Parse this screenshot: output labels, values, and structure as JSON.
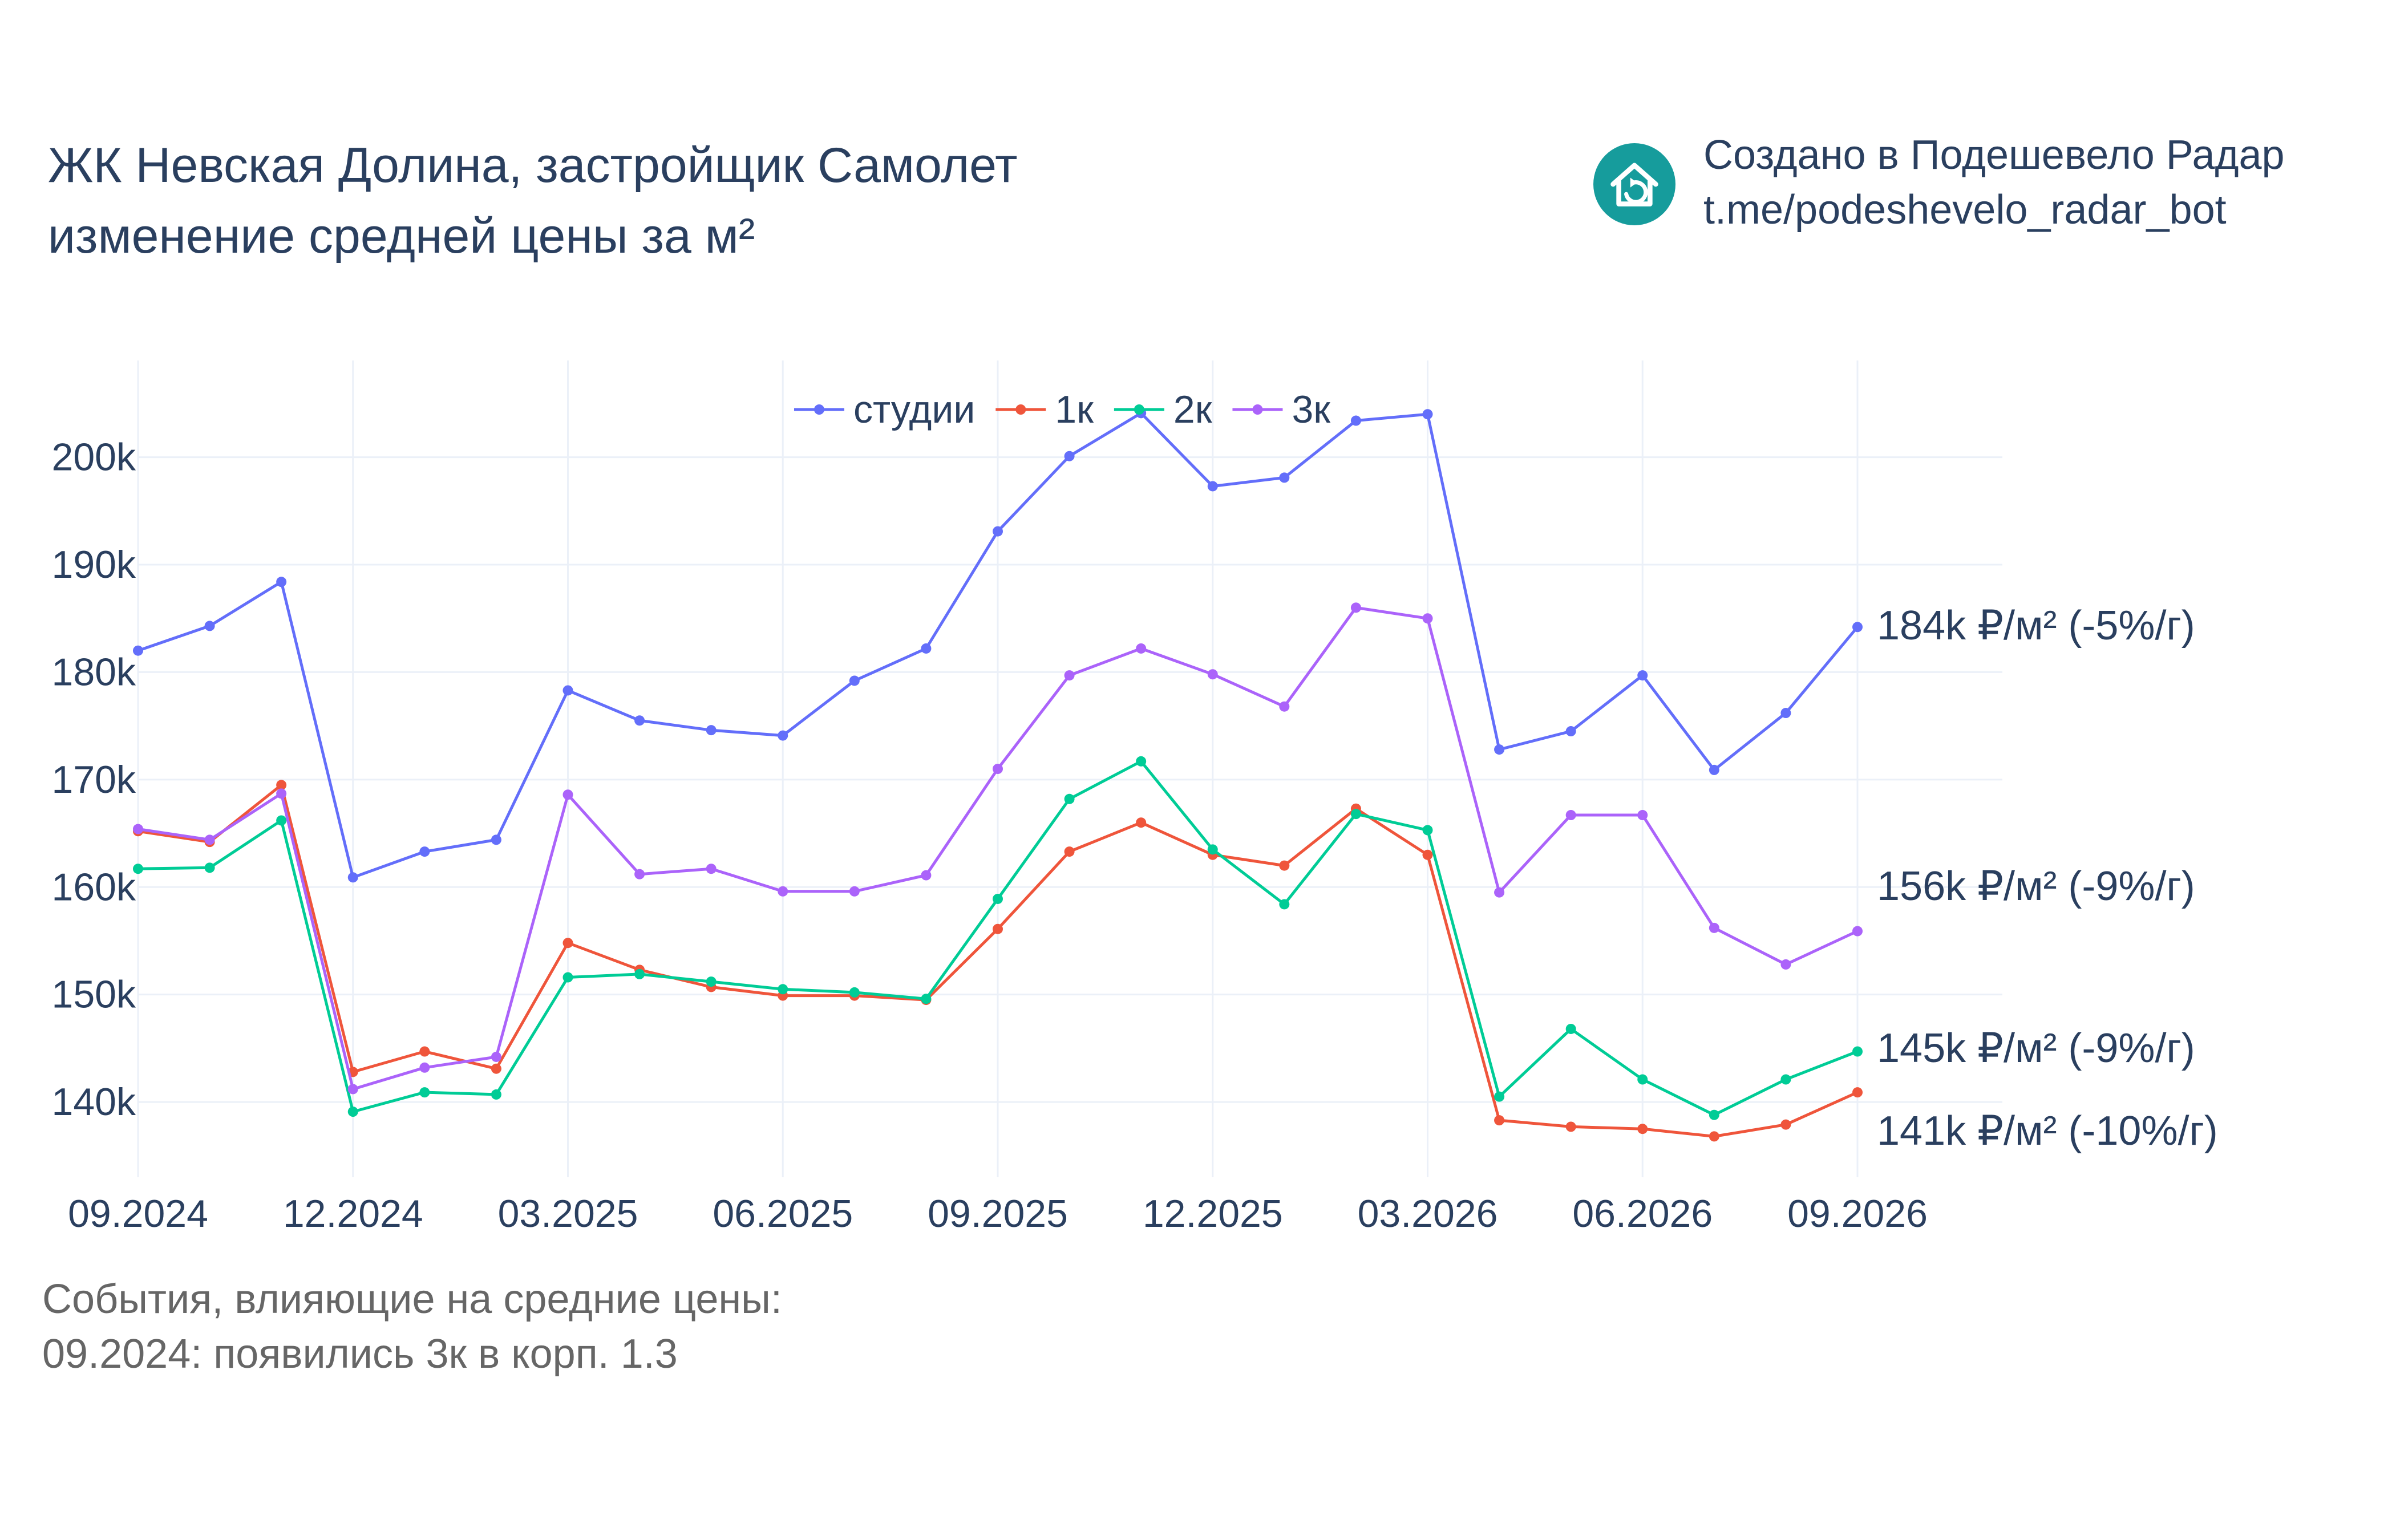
{
  "header": {
    "title_line1": "ЖК Невская Долина, застройщик Самолет",
    "title_line2": "изменение средней цены за м²"
  },
  "credit": {
    "line1": "Создано в Подешевело Радар",
    "line2": "t.me/podeshevelo_radar_bot",
    "logo_icon": "house-logo-icon",
    "logo_color": "#169c9c"
  },
  "chart_data": {
    "type": "line",
    "title": "ЖК Невская Долина, застройщик Самолет изменение средней цены за м²",
    "xlabel": "",
    "ylabel": "",
    "grid": true,
    "legend_position": "top",
    "x": [
      "2024-09",
      "2024-10",
      "2024-11",
      "2024-12",
      "2025-01",
      "2025-02",
      "2025-03",
      "2025-04",
      "2025-05",
      "2025-06",
      "2025-07",
      "2025-08",
      "2025-09",
      "2025-10",
      "2025-11",
      "2025-12",
      "2026-01",
      "2026-02",
      "2026-03",
      "2026-04",
      "2026-05",
      "2026-06",
      "2026-07",
      "2026-08",
      "2026-09"
    ],
    "x_ticks": [
      {
        "x": "2024-09",
        "label": "09.2024"
      },
      {
        "x": "2024-12",
        "label": "12.2024"
      },
      {
        "x": "2025-03",
        "label": "03.2025"
      },
      {
        "x": "2025-06",
        "label": "06.2025"
      },
      {
        "x": "2025-09",
        "label": "09.2025"
      },
      {
        "x": "2025-12",
        "label": "12.2025"
      },
      {
        "x": "2026-03",
        "label": "03.2026"
      },
      {
        "x": "2026-06",
        "label": "06.2026"
      },
      {
        "x": "2026-09",
        "label": "09.2026"
      }
    ],
    "y_ticks": [
      {
        "value": 140000,
        "label": "140k"
      },
      {
        "value": 150000,
        "label": "150k"
      },
      {
        "value": 160000,
        "label": "160k"
      },
      {
        "value": 170000,
        "label": "170k"
      },
      {
        "value": 180000,
        "label": "180k"
      },
      {
        "value": 190000,
        "label": "190k"
      },
      {
        "value": 200000,
        "label": "200k"
      }
    ],
    "ylim": [
      133000,
      209000
    ],
    "series": [
      {
        "name": "студии",
        "color": "#636efa",
        "values": [
          182000,
          184300,
          188400,
          160900,
          163300,
          164400,
          178300,
          175500,
          174600,
          174100,
          179200,
          182200,
          193100,
          200100,
          204100,
          197300,
          198100,
          203400,
          204000,
          172800,
          174500,
          179700,
          170900,
          176200,
          184200
        ],
        "end_label": "184k ₽/м² (-5%/г)"
      },
      {
        "name": "1к",
        "color": "#ef553b",
        "values": [
          165200,
          164200,
          169500,
          142800,
          144700,
          143100,
          154800,
          152300,
          150700,
          149900,
          149900,
          149500,
          156100,
          163300,
          166000,
          163000,
          162000,
          167300,
          163000,
          138300,
          137700,
          137500,
          136800,
          137900,
          140900
        ],
        "end_label": "141k ₽/м² (-10%/г)"
      },
      {
        "name": "2к",
        "color": "#00cc96",
        "values": [
          161700,
          161800,
          166200,
          139100,
          140900,
          140700,
          151600,
          151900,
          151200,
          150500,
          150200,
          149600,
          158900,
          168200,
          171700,
          163500,
          158400,
          166800,
          165300,
          140500,
          146800,
          142100,
          138800,
          142100,
          144700
        ],
        "end_label": "145k ₽/м² (-9%/г)"
      },
      {
        "name": "3к",
        "color": "#ab63fa",
        "values": [
          165400,
          164400,
          168700,
          141200,
          143200,
          144200,
          168600,
          161200,
          161700,
          159600,
          159600,
          161100,
          171000,
          179700,
          182200,
          179800,
          176800,
          186000,
          185000,
          159500,
          166700,
          166700,
          156200,
          152800,
          155900
        ],
        "end_label": "156k ₽/м² (-9%/г)"
      }
    ]
  },
  "events": {
    "heading": "События, влияющие на средние цены:",
    "items": [
      "09.2024: появились 3к в корп. 1.3"
    ]
  }
}
